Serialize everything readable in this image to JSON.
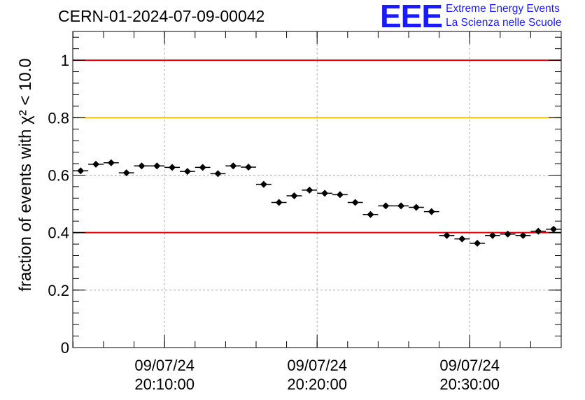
{
  "title": "CERN-01-2024-07-09-00042",
  "logo": {
    "mark": "EEE",
    "line1": "Extreme Energy Events",
    "line2": "La Scienza nelle Scuole",
    "color": "#1a1aff"
  },
  "chart_data": {
    "type": "scatter",
    "title": "CERN-01-2024-07-09-00042",
    "ylabel": "fraction of events with χ² < 10.0",
    "xlabel": "",
    "ylim": [
      0,
      1.1
    ],
    "yticks": [
      0,
      0.2,
      0.4,
      0.6,
      0.8,
      1
    ],
    "ytick_labels": [
      "0",
      "0.2",
      "0.4",
      "0.6",
      "0.8",
      "1"
    ],
    "xlim": [
      "2024-07-09 20:03:59",
      "2024-07-09 20:36:00"
    ],
    "xticks": [
      {
        "time": "2024-07-09 20:10:00",
        "date_label": "09/07/24",
        "time_label": "20:10:00"
      },
      {
        "time": "2024-07-09 20:20:00",
        "date_label": "09/07/24",
        "time_label": "20:20:00"
      },
      {
        "time": "2024-07-09 20:30:00",
        "date_label": "09/07/24",
        "time_label": "20:30:00"
      }
    ],
    "grid": true,
    "reference_lines": [
      {
        "y": 1.0,
        "color": "#e8000b"
      },
      {
        "y": 0.8,
        "color": "#ffc000"
      },
      {
        "y": 0.4,
        "color": "#e8000b"
      }
    ],
    "marker_color": "#000000",
    "series": [
      {
        "x": [
          "2024-07-09 20:04:30",
          "2024-07-09 20:05:30",
          "2024-07-09 20:06:30",
          "2024-07-09 20:07:30",
          "2024-07-09 20:08:30",
          "2024-07-09 20:09:30",
          "2024-07-09 20:10:30",
          "2024-07-09 20:11:30",
          "2024-07-09 20:12:30",
          "2024-07-09 20:13:30",
          "2024-07-09 20:14:30",
          "2024-07-09 20:15:30",
          "2024-07-09 20:16:30",
          "2024-07-09 20:17:30",
          "2024-07-09 20:18:30",
          "2024-07-09 20:19:30",
          "2024-07-09 20:20:30",
          "2024-07-09 20:21:30",
          "2024-07-09 20:22:30",
          "2024-07-09 20:23:30",
          "2024-07-09 20:24:30",
          "2024-07-09 20:25:30",
          "2024-07-09 20:26:30",
          "2024-07-09 20:27:30",
          "2024-07-09 20:28:30",
          "2024-07-09 20:29:30",
          "2024-07-09 20:30:30",
          "2024-07-09 20:31:30",
          "2024-07-09 20:32:30",
          "2024-07-09 20:33:30",
          "2024-07-09 20:34:30",
          "2024-07-09 20:35:30"
        ],
        "values": [
          0.615,
          0.638,
          0.643,
          0.608,
          0.632,
          0.632,
          0.627,
          0.613,
          0.627,
          0.605,
          0.632,
          0.628,
          0.568,
          0.505,
          0.528,
          0.548,
          0.537,
          0.532,
          0.505,
          0.463,
          0.493,
          0.493,
          0.488,
          0.473,
          0.39,
          0.378,
          0.363,
          0.39,
          0.395,
          0.39,
          0.405,
          0.412
        ],
        "errors": [
          0.009,
          0.009,
          0.009,
          0.009,
          0.009,
          0.009,
          0.009,
          0.009,
          0.009,
          0.009,
          0.009,
          0.009,
          0.009,
          0.009,
          0.009,
          0.009,
          0.009,
          0.009,
          0.009,
          0.009,
          0.009,
          0.009,
          0.009,
          0.009,
          0.009,
          0.009,
          0.009,
          0.009,
          0.009,
          0.009,
          0.009,
          0.009
        ]
      }
    ]
  }
}
